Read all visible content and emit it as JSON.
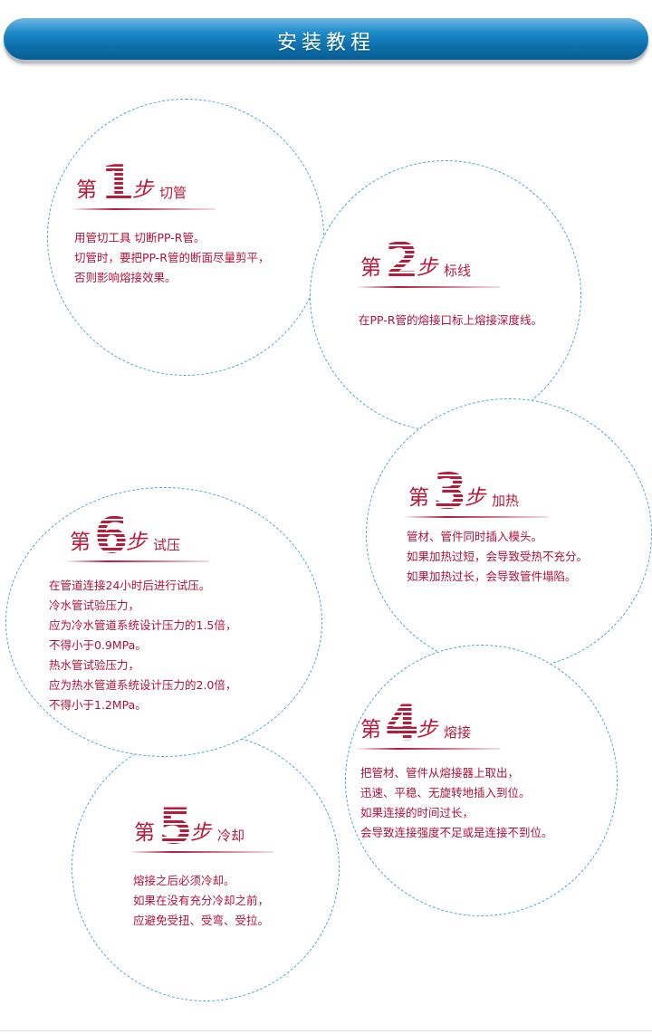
{
  "banner": {
    "title": "安装教程"
  },
  "step_prefix": "第",
  "step_suffix": "步",
  "steps": [
    {
      "num": "1",
      "name": "切管",
      "lines": [
        "用管切工具 切断PP-R管。",
        "切管时，要把PP-R管的断面尽量剪平，",
        "否则影响熔接效果。"
      ]
    },
    {
      "num": "2",
      "name": "标线",
      "lines": [
        "在PP-R管的熔接口标上熔接深度线。"
      ]
    },
    {
      "num": "3",
      "name": "加热",
      "lines": [
        "管材、管件同时插入模头。",
        "如果加热过短，会导致受热不充分。",
        "如果加热过长，会导致管件塌陷。"
      ]
    },
    {
      "num": "6",
      "name": "试压",
      "lines": [
        "在管道连接24小时后进行试压。",
        "冷水管试验压力，",
        "应为冷水管道系统设计压力的1.5倍，",
        "不得小于0.9MPa。",
        "热水管试验压力，",
        "应为热水管道系统设计压力的2.0倍，",
        "不得小于1.2MPa。"
      ]
    },
    {
      "num": "4",
      "name": "熔接",
      "lines": [
        "把管材、管件从熔接器上取出，",
        "迅速、平稳、无旋转地插入到位。",
        "如果连接的时间过长，",
        "会导致连接强度不足或是连接不到位。"
      ]
    },
    {
      "num": "5",
      "name": "冷却",
      "lines": [
        "熔接之后必须冷却。",
        "如果在没有充分冷却之前，",
        "应避免受扭、受弯、受拉。"
      ]
    }
  ],
  "colors": {
    "accent_red": "#b81a3a",
    "banner_blue": "#0c6ea9",
    "circle_border": "#4aa9d8"
  }
}
